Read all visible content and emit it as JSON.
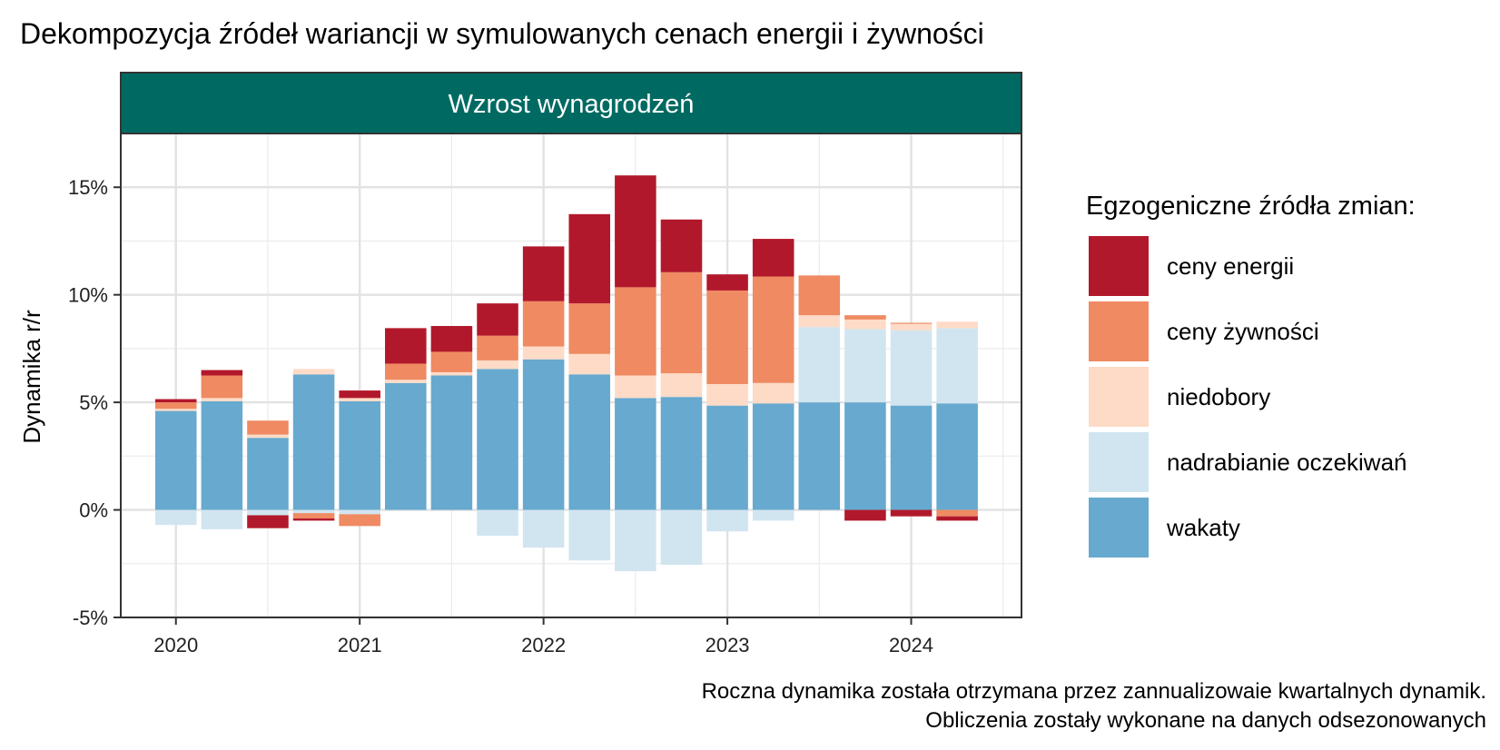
{
  "chart_data": {
    "type": "bar",
    "stacked": true,
    "title": "Dekompozycja źródeł wariancji w symulowanych cenach energii i żywności",
    "facet_label": "Wzrost wynagrodzeń",
    "ylabel": "Dynamika r/r",
    "xlabel": "",
    "ylim": [
      -5,
      17.5
    ],
    "y_ticks": [
      -5,
      0,
      5,
      10,
      15
    ],
    "y_tick_labels": [
      "-5%",
      "0%",
      "5%",
      "10%",
      "15%"
    ],
    "x_ticks": [
      2020,
      2021,
      2022,
      2023,
      2024
    ],
    "x_tick_labels": [
      "2020",
      "2021",
      "2022",
      "2023",
      "2024"
    ],
    "xlim": [
      2019.7,
      2024.6
    ],
    "grid": true,
    "legend": {
      "title": "Egzogeniczne źródła zmian:",
      "position": "right",
      "items": [
        {
          "key": "energy",
          "label": "ceny energii",
          "color": "#B2182B"
        },
        {
          "key": "food",
          "label": "ceny żywności",
          "color": "#EF8A62"
        },
        {
          "key": "shortages",
          "label": "niedobory",
          "color": "#FDDBC7"
        },
        {
          "key": "expectations",
          "label": "nadrabianie oczekiwań",
          "color": "#D1E5F0"
        },
        {
          "key": "vacancies",
          "label": "wakaty",
          "color": "#67A9CF"
        }
      ]
    },
    "x": [
      2020.0,
      2020.25,
      2020.5,
      2020.75,
      2021.0,
      2021.25,
      2021.5,
      2021.75,
      2022.0,
      2022.25,
      2022.5,
      2022.75,
      2023.0,
      2023.25,
      2023.5,
      2023.75,
      2024.0,
      2024.25
    ],
    "series": [
      {
        "key": "vacancies",
        "values": [
          4.6,
          5.05,
          3.35,
          6.3,
          5.05,
          5.9,
          6.25,
          6.55,
          7.0,
          6.3,
          5.2,
          5.25,
          4.85,
          4.95,
          5.0,
          5.0,
          4.85,
          4.95
        ]
      },
      {
        "key": "expectations",
        "values": [
          -0.7,
          -0.9,
          -0.25,
          -0.15,
          -0.2,
          0.0,
          0.0,
          -1.2,
          -1.75,
          -2.35,
          -2.85,
          -2.55,
          -1.0,
          -0.5,
          3.5,
          3.4,
          3.5,
          3.5
        ]
      },
      {
        "key": "shortages",
        "values": [
          0.1,
          0.15,
          0.15,
          0.25,
          0.15,
          0.15,
          0.15,
          0.4,
          0.6,
          0.95,
          1.05,
          1.1,
          1.0,
          0.95,
          0.55,
          0.45,
          0.3,
          0.3
        ]
      },
      {
        "key": "food",
        "values": [
          0.3,
          1.05,
          0.65,
          -0.25,
          -0.55,
          0.75,
          0.95,
          1.15,
          2.1,
          2.35,
          4.1,
          4.7,
          4.35,
          4.95,
          1.85,
          0.2,
          0.05,
          -0.3
        ]
      },
      {
        "key": "energy",
        "values": [
          0.15,
          0.25,
          -0.6,
          -0.1,
          0.35,
          1.65,
          1.2,
          1.5,
          2.55,
          4.15,
          5.2,
          2.45,
          0.75,
          1.75,
          0.0,
          -0.5,
          -0.3,
          -0.2
        ]
      }
    ],
    "caption": [
      "Roczna dynamika została otrzymana przez zannualizowaie kwartalnych dynamik.",
      "Obliczenia zostały wykonane na danych odsezonowanych"
    ]
  }
}
